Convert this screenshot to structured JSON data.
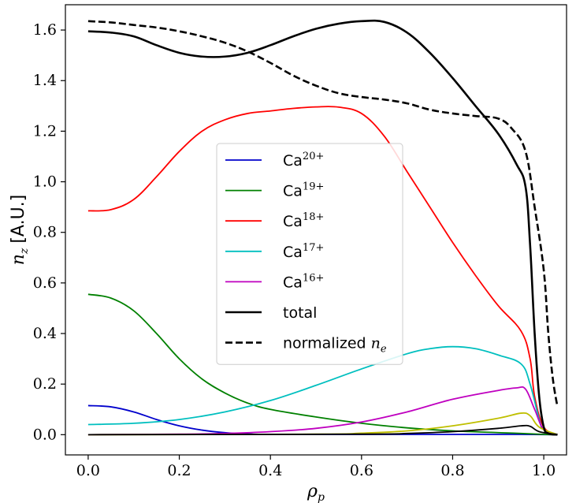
{
  "chart_data": {
    "type": "line",
    "xlabel": "ρ",
    "xlabel_sub": "p",
    "ylabel": "n",
    "ylabel_sub": "z",
    "ylabel_unit": "[A.U.]",
    "xlim": [
      -0.05,
      1.05
    ],
    "ylim": [
      -0.08,
      1.7
    ],
    "xticks": [
      0.0,
      0.2,
      0.4,
      0.6,
      0.8,
      1.0
    ],
    "xtick_labels": [
      "0.0",
      "0.2",
      "0.4",
      "0.6",
      "0.8",
      "1.0"
    ],
    "yticks": [
      0.0,
      0.2,
      0.4,
      0.6,
      0.8,
      1.0,
      1.2,
      1.4,
      1.6
    ],
    "ytick_labels": [
      "0.0",
      "0.2",
      "0.4",
      "0.6",
      "0.8",
      "1.0",
      "1.2",
      "1.4",
      "1.6"
    ],
    "grid": false,
    "legend_position": "center",
    "series": [
      {
        "name": "Ca",
        "superscript": "20+",
        "color": "#0000cc",
        "dash": "solid",
        "legend": true,
        "points": [
          [
            0,
            0.115
          ],
          [
            0.05,
            0.11
          ],
          [
            0.1,
            0.09
          ],
          [
            0.15,
            0.06
          ],
          [
            0.2,
            0.035
          ],
          [
            0.25,
            0.018
          ],
          [
            0.3,
            0.008
          ],
          [
            0.35,
            0.003
          ],
          [
            0.4,
            0.001
          ],
          [
            0.6,
            0.001
          ],
          [
            0.8,
            0.001
          ],
          [
            0.95,
            0.001
          ],
          [
            1.03,
            0.0
          ]
        ]
      },
      {
        "name": "Ca",
        "superscript": "19+",
        "color": "#008000",
        "dash": "solid",
        "legend": true,
        "points": [
          [
            0,
            0.555
          ],
          [
            0.05,
            0.54
          ],
          [
            0.1,
            0.49
          ],
          [
            0.15,
            0.4
          ],
          [
            0.2,
            0.3
          ],
          [
            0.25,
            0.22
          ],
          [
            0.3,
            0.165
          ],
          [
            0.35,
            0.125
          ],
          [
            0.4,
            0.1
          ],
          [
            0.5,
            0.07
          ],
          [
            0.6,
            0.045
          ],
          [
            0.7,
            0.027
          ],
          [
            0.8,
            0.015
          ],
          [
            0.9,
            0.008
          ],
          [
            0.95,
            0.005
          ],
          [
            1.0,
            0.001
          ],
          [
            1.03,
            0.0
          ]
        ]
      },
      {
        "name": "Ca",
        "superscript": "18+",
        "color": "#ff0000",
        "dash": "solid",
        "legend": true,
        "points": [
          [
            0,
            0.885
          ],
          [
            0.05,
            0.89
          ],
          [
            0.1,
            0.93
          ],
          [
            0.15,
            1.02
          ],
          [
            0.2,
            1.12
          ],
          [
            0.25,
            1.2
          ],
          [
            0.3,
            1.245
          ],
          [
            0.35,
            1.27
          ],
          [
            0.4,
            1.28
          ],
          [
            0.45,
            1.29
          ],
          [
            0.5,
            1.296
          ],
          [
            0.55,
            1.295
          ],
          [
            0.6,
            1.27
          ],
          [
            0.65,
            1.18
          ],
          [
            0.7,
            1.04
          ],
          [
            0.75,
            0.9
          ],
          [
            0.8,
            0.76
          ],
          [
            0.85,
            0.63
          ],
          [
            0.9,
            0.51
          ],
          [
            0.95,
            0.41
          ],
          [
            0.97,
            0.3
          ],
          [
            0.98,
            0.15
          ],
          [
            1.0,
            0.03
          ],
          [
            1.03,
            0.0
          ]
        ]
      },
      {
        "name": "Ca",
        "superscript": "17+",
        "color": "#00bfbf",
        "dash": "solid",
        "legend": true,
        "points": [
          [
            0,
            0.04
          ],
          [
            0.1,
            0.045
          ],
          [
            0.2,
            0.06
          ],
          [
            0.3,
            0.09
          ],
          [
            0.4,
            0.135
          ],
          [
            0.5,
            0.195
          ],
          [
            0.6,
            0.26
          ],
          [
            0.7,
            0.32
          ],
          [
            0.75,
            0.34
          ],
          [
            0.8,
            0.348
          ],
          [
            0.85,
            0.34
          ],
          [
            0.9,
            0.315
          ],
          [
            0.95,
            0.28
          ],
          [
            0.97,
            0.2
          ],
          [
            0.99,
            0.06
          ],
          [
            1.0,
            0.02
          ],
          [
            1.03,
            0.0
          ]
        ]
      },
      {
        "name": "Ca",
        "superscript": "16+",
        "color": "#bf00bf",
        "dash": "solid",
        "legend": true,
        "points": [
          [
            0,
            0.0
          ],
          [
            0.2,
            0.002
          ],
          [
            0.3,
            0.005
          ],
          [
            0.4,
            0.012
          ],
          [
            0.5,
            0.025
          ],
          [
            0.6,
            0.05
          ],
          [
            0.7,
            0.09
          ],
          [
            0.8,
            0.14
          ],
          [
            0.9,
            0.175
          ],
          [
            0.94,
            0.185
          ],
          [
            0.96,
            0.18
          ],
          [
            0.98,
            0.1
          ],
          [
            1.0,
            0.02
          ],
          [
            1.03,
            0.0
          ]
        ]
      },
      {
        "name": "",
        "superscript": "",
        "color": "#bfbf00",
        "dash": "solid",
        "legend": false,
        "points": [
          [
            0,
            0.0
          ],
          [
            0.5,
            0.002
          ],
          [
            0.6,
            0.006
          ],
          [
            0.7,
            0.015
          ],
          [
            0.8,
            0.035
          ],
          [
            0.9,
            0.065
          ],
          [
            0.95,
            0.085
          ],
          [
            0.97,
            0.075
          ],
          [
            0.99,
            0.03
          ],
          [
            1.03,
            0.0
          ]
        ]
      },
      {
        "name": "",
        "superscript": "",
        "color": "#000000",
        "dash": "solid",
        "legend": false,
        "points": [
          [
            0,
            0.0
          ],
          [
            0.6,
            0.002
          ],
          [
            0.7,
            0.005
          ],
          [
            0.8,
            0.012
          ],
          [
            0.9,
            0.025
          ],
          [
            0.95,
            0.035
          ],
          [
            0.97,
            0.033
          ],
          [
            0.99,
            0.012
          ],
          [
            1.03,
            0.0
          ]
        ]
      },
      {
        "name": "total",
        "superscript": "",
        "color": "#000000",
        "dash": "solid",
        "legend": true,
        "width": 2.6,
        "points": [
          [
            0,
            1.595
          ],
          [
            0.05,
            1.59
          ],
          [
            0.1,
            1.575
          ],
          [
            0.15,
            1.54
          ],
          [
            0.2,
            1.51
          ],
          [
            0.25,
            1.495
          ],
          [
            0.3,
            1.495
          ],
          [
            0.35,
            1.51
          ],
          [
            0.4,
            1.54
          ],
          [
            0.45,
            1.575
          ],
          [
            0.5,
            1.605
          ],
          [
            0.55,
            1.625
          ],
          [
            0.6,
            1.635
          ],
          [
            0.65,
            1.632
          ],
          [
            0.7,
            1.59
          ],
          [
            0.75,
            1.51
          ],
          [
            0.8,
            1.41
          ],
          [
            0.85,
            1.3
          ],
          [
            0.9,
            1.19
          ],
          [
            0.94,
            1.07
          ],
          [
            0.96,
            0.98
          ],
          [
            0.97,
            0.75
          ],
          [
            0.98,
            0.4
          ],
          [
            0.99,
            0.15
          ],
          [
            1.0,
            0.03
          ],
          [
            1.01,
            0.005
          ],
          [
            1.03,
            0.0
          ]
        ]
      },
      {
        "name": "normalized",
        "name_math": "n",
        "name_math_sub": "e",
        "color": "#000000",
        "dash": "dashed",
        "legend": true,
        "width": 2.6,
        "points": [
          [
            0,
            1.635
          ],
          [
            0.05,
            1.63
          ],
          [
            0.1,
            1.62
          ],
          [
            0.15,
            1.61
          ],
          [
            0.2,
            1.595
          ],
          [
            0.25,
            1.575
          ],
          [
            0.3,
            1.55
          ],
          [
            0.35,
            1.515
          ],
          [
            0.4,
            1.47
          ],
          [
            0.45,
            1.42
          ],
          [
            0.5,
            1.38
          ],
          [
            0.55,
            1.35
          ],
          [
            0.6,
            1.335
          ],
          [
            0.65,
            1.325
          ],
          [
            0.7,
            1.31
          ],
          [
            0.75,
            1.285
          ],
          [
            0.8,
            1.27
          ],
          [
            0.85,
            1.26
          ],
          [
            0.9,
            1.25
          ],
          [
            0.93,
            1.21
          ],
          [
            0.96,
            1.12
          ],
          [
            0.98,
            0.9
          ],
          [
            1.0,
            0.65
          ],
          [
            1.01,
            0.4
          ],
          [
            1.02,
            0.22
          ],
          [
            1.03,
            0.11
          ]
        ]
      }
    ]
  }
}
